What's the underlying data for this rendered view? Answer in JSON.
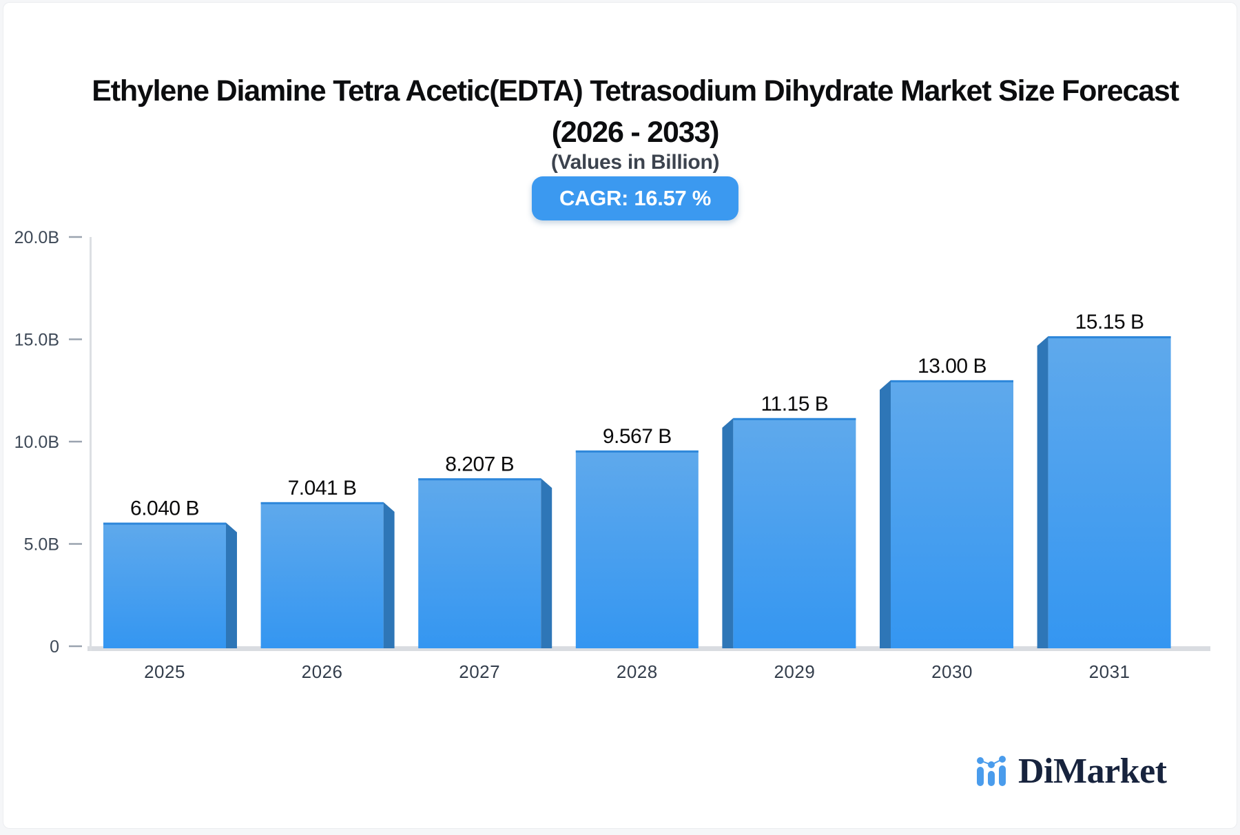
{
  "header": {
    "title_line1": "Ethylene Diamine Tetra Acetic(EDTA) Tetrasodium Dihydrate Market Size Forecast",
    "title_line2": "(2026 - 2033)",
    "subtitle": "(Values in Billion)",
    "cagr_badge": "CAGR: 16.57 %"
  },
  "chart_data": {
    "type": "bar",
    "title": "Ethylene Diamine Tetra Acetic(EDTA) Tetrasodium Dihydrate Market Size Forecast (2026 - 2033)",
    "subtitle": "(Values in Billion)",
    "cagr_percent": 16.57,
    "categories": [
      "2025",
      "2026",
      "2027",
      "2028",
      "2029",
      "2030",
      "2031"
    ],
    "values": [
      6.04,
      7.041,
      8.207,
      9.567,
      11.15,
      13.0,
      15.15
    ],
    "value_labels": [
      "6.040 B",
      "7.041 B",
      "8.207 B",
      "9.567 B",
      "11.15 B",
      "13.00 B",
      "15.15 B"
    ],
    "unit": "Billion",
    "xlabel": "",
    "ylabel": "",
    "ylim": [
      0,
      20
    ],
    "grid": false,
    "legend": "none",
    "yticks": [
      {
        "value": 20,
        "label": "20.0B"
      },
      {
        "value": 15,
        "label": "15.0B"
      },
      {
        "value": 10,
        "label": "10.0B"
      },
      {
        "value": 5,
        "label": "5.0B"
      },
      {
        "value": 0,
        "label": "0"
      }
    ],
    "colors": {
      "bar_face_top": "#5fa9ec",
      "bar_face_bottom": "#3496f1",
      "bar_side": "#2e76b7",
      "bar_top_edge": "#2e87da",
      "axis_line": "#dcdfe3",
      "baseline": "#d9dce1",
      "tick_dash": "#9aa3af",
      "tick_label": "#3e4957",
      "value_label": "#0a0a0b",
      "category_label": "#333d4b",
      "badge_bg": "#3b99f0"
    }
  },
  "branding": {
    "logo_text": "DiMarket",
    "logo_icon": "mini-bar-chart-icon",
    "logo_color": "#4a9cec",
    "logo_text_color": "#17233d"
  }
}
